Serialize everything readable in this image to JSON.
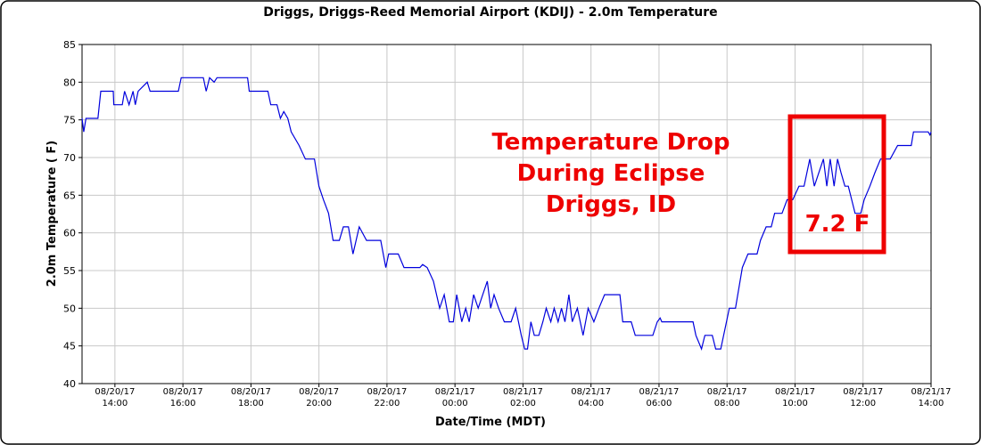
{
  "chart_data": {
    "type": "line",
    "title": "Driggs, Driggs-Reed Memorial Airport (KDIJ) - 2.0m Temperature",
    "x_label": "Date/Time (MDT)",
    "y_label": "2.0m Temperature ( F)",
    "annotations": [
      "Temperature Drop",
      "During Eclipse",
      "Driggs, ID",
      "7.2 F"
    ],
    "grid": true,
    "xlim": [
      "08/20/17 13:02",
      "08/21/17 14:00"
    ],
    "ylim": [
      40,
      85
    ],
    "yticks": [
      40,
      45,
      50,
      55,
      60,
      65,
      70,
      75,
      80,
      85
    ],
    "xticks": [
      "08/20/17 14:00",
      "08/20/17 16:00",
      "08/20/17 18:00",
      "08/20/17 20:00",
      "08/20/17 22:00",
      "08/21/17 00:00",
      "08/21/17 02:00",
      "08/21/17 04:00",
      "08/21/17 06:00",
      "08/21/17 08:00",
      "08/21/17 10:00",
      "08/21/17 12:00",
      "08/21/17 14:00"
    ],
    "x": [
      "08/20/17 13:02",
      "08/20/17 13:05",
      "08/20/17 13:09",
      "08/20/17 13:30",
      "08/20/17 13:35",
      "08/20/17 13:57",
      "08/20/17 13:58",
      "08/20/17 14:13",
      "08/20/17 14:17",
      "08/20/17 14:25",
      "08/20/17 14:32",
      "08/20/17 14:36",
      "08/20/17 14:41",
      "08/20/17 14:57",
      "08/20/17 15:02",
      "08/20/17 15:52",
      "08/20/17 15:57",
      "08/20/17 16:36",
      "08/20/17 16:41",
      "08/20/17 16:47",
      "08/20/17 16:55",
      "08/20/17 17:00",
      "08/20/17 17:54",
      "08/20/17 17:57",
      "08/20/17 18:30",
      "08/20/17 18:35",
      "08/20/17 18:46",
      "08/20/17 18:52",
      "08/20/17 18:58",
      "08/20/17 19:05",
      "08/20/17 19:11",
      "08/20/17 19:25",
      "08/20/17 19:36",
      "08/20/17 19:52",
      "08/20/17 20:00",
      "08/20/17 20:08",
      "08/20/17 20:17",
      "08/20/17 20:25",
      "08/20/17 20:36",
      "08/20/17 20:43",
      "08/20/17 20:52",
      "08/20/17 21:00",
      "08/20/17 21:11",
      "08/20/17 21:24",
      "08/20/17 21:49",
      "08/20/17 21:58",
      "08/20/17 22:03",
      "08/20/17 22:20",
      "08/20/17 22:30",
      "08/20/17 22:58",
      "08/20/17 23:03",
      "08/20/17 23:11",
      "08/20/17 23:22",
      "08/20/17 23:33",
      "08/20/17 23:41",
      "08/20/17 23:50",
      "08/20/17 23:57",
      "08/21/17 00:03",
      "08/21/17 00:12",
      "08/21/17 00:19",
      "08/21/17 00:25",
      "08/21/17 00:33",
      "08/21/17 00:41",
      "08/21/17 00:49",
      "08/21/17 00:57",
      "08/21/17 01:03",
      "08/21/17 01:09",
      "08/21/17 01:17",
      "08/21/17 01:27",
      "08/21/17 01:39",
      "08/21/17 01:47",
      "08/21/17 01:57",
      "08/21/17 02:03",
      "08/21/17 02:08",
      "08/21/17 02:14",
      "08/21/17 02:20",
      "08/21/17 02:28",
      "08/21/17 02:35",
      "08/21/17 02:41",
      "08/21/17 02:49",
      "08/21/17 02:55",
      "08/21/17 03:02",
      "08/21/17 03:08",
      "08/21/17 03:14",
      "08/21/17 03:21",
      "08/21/17 03:27",
      "08/21/17 03:36",
      "08/21/17 03:46",
      "08/21/17 03:55",
      "08/21/17 04:05",
      "08/21/17 04:14",
      "08/21/17 04:24",
      "08/21/17 04:51",
      "08/21/17 04:56",
      "08/21/17 05:11",
      "08/21/17 05:18",
      "08/21/17 05:49",
      "08/21/17 05:57",
      "08/21/17 06:02",
      "08/21/17 06:05",
      "08/21/17 07:00",
      "08/21/17 07:05",
      "08/21/17 07:15",
      "08/21/17 07:21",
      "08/21/17 07:34",
      "08/21/17 07:40",
      "08/21/17 07:49",
      "08/21/17 07:59",
      "08/21/17 08:04",
      "08/21/17 08:15",
      "08/21/17 08:27",
      "08/21/17 08:37",
      "08/21/17 08:53",
      "08/21/17 08:59",
      "08/21/17 09:09",
      "08/21/17 09:18",
      "08/21/17 09:24",
      "08/21/17 09:37",
      "08/21/17 09:46",
      "08/21/17 09:56",
      "08/21/17 10:07",
      "08/21/17 10:16",
      "08/21/17 10:26",
      "08/21/17 10:34",
      "08/21/17 10:42",
      "08/21/17 10:50",
      "08/21/17 10:56",
      "08/21/17 11:02",
      "08/21/17 11:09",
      "08/21/17 11:15",
      "08/21/17 11:21",
      "08/21/17 11:28",
      "08/21/17 11:34",
      "08/21/17 11:40",
      "08/21/17 11:46",
      "08/21/17 11:56",
      "08/21/17 12:02",
      "08/21/17 12:12",
      "08/21/17 12:21",
      "08/21/17 12:31",
      "08/21/17 12:48",
      "08/21/17 13:01",
      "08/21/17 13:25",
      "08/21/17 13:29",
      "08/21/17 13:55",
      "08/21/17 13:58",
      "08/21/17 14:00"
    ],
    "series": [
      {
        "name": "2.0m Temperature",
        "color": "#0000dd",
        "values": [
          75.2,
          73.4,
          75.2,
          75.2,
          78.8,
          78.8,
          77,
          77,
          78.8,
          77,
          78.8,
          77,
          78.8,
          80,
          78.8,
          78.8,
          80.6,
          80.6,
          78.8,
          80.6,
          80,
          80.6,
          80.6,
          78.8,
          78.8,
          77,
          77,
          75.2,
          76.1,
          75.2,
          73.4,
          71.6,
          69.8,
          69.8,
          66.2,
          64.4,
          62.6,
          59,
          59,
          60.8,
          60.8,
          57.2,
          60.8,
          59,
          59,
          55.4,
          57.2,
          57.2,
          55.4,
          55.4,
          55.8,
          55.4,
          53.6,
          50,
          51.8,
          48.2,
          48.2,
          51.8,
          48.2,
          50,
          48.2,
          51.8,
          50,
          51.8,
          53.6,
          50,
          51.8,
          50,
          48.2,
          48.2,
          50,
          46.4,
          44.6,
          44.6,
          48.2,
          46.4,
          46.4,
          48.2,
          50,
          48.2,
          50,
          48.2,
          50,
          48.2,
          51.8,
          48.2,
          50,
          46.4,
          50,
          48.2,
          50,
          51.8,
          51.8,
          48.2,
          48.2,
          46.4,
          46.4,
          48.2,
          48.7,
          48.2,
          48.2,
          46.4,
          44.6,
          46.4,
          46.4,
          44.6,
          44.6,
          48.2,
          50,
          50,
          55.4,
          57.2,
          57.2,
          59,
          60.8,
          60.8,
          62.6,
          62.6,
          64.4,
          64.4,
          66.2,
          66.2,
          69.8,
          66.2,
          68,
          69.8,
          66.2,
          69.8,
          66.2,
          69.8,
          68,
          66.2,
          66.2,
          64.4,
          62.6,
          62.6,
          64.4,
          66.2,
          68,
          69.8,
          69.8,
          71.6,
          71.6,
          73.4,
          73.4,
          73,
          73.4
        ]
      }
    ]
  }
}
